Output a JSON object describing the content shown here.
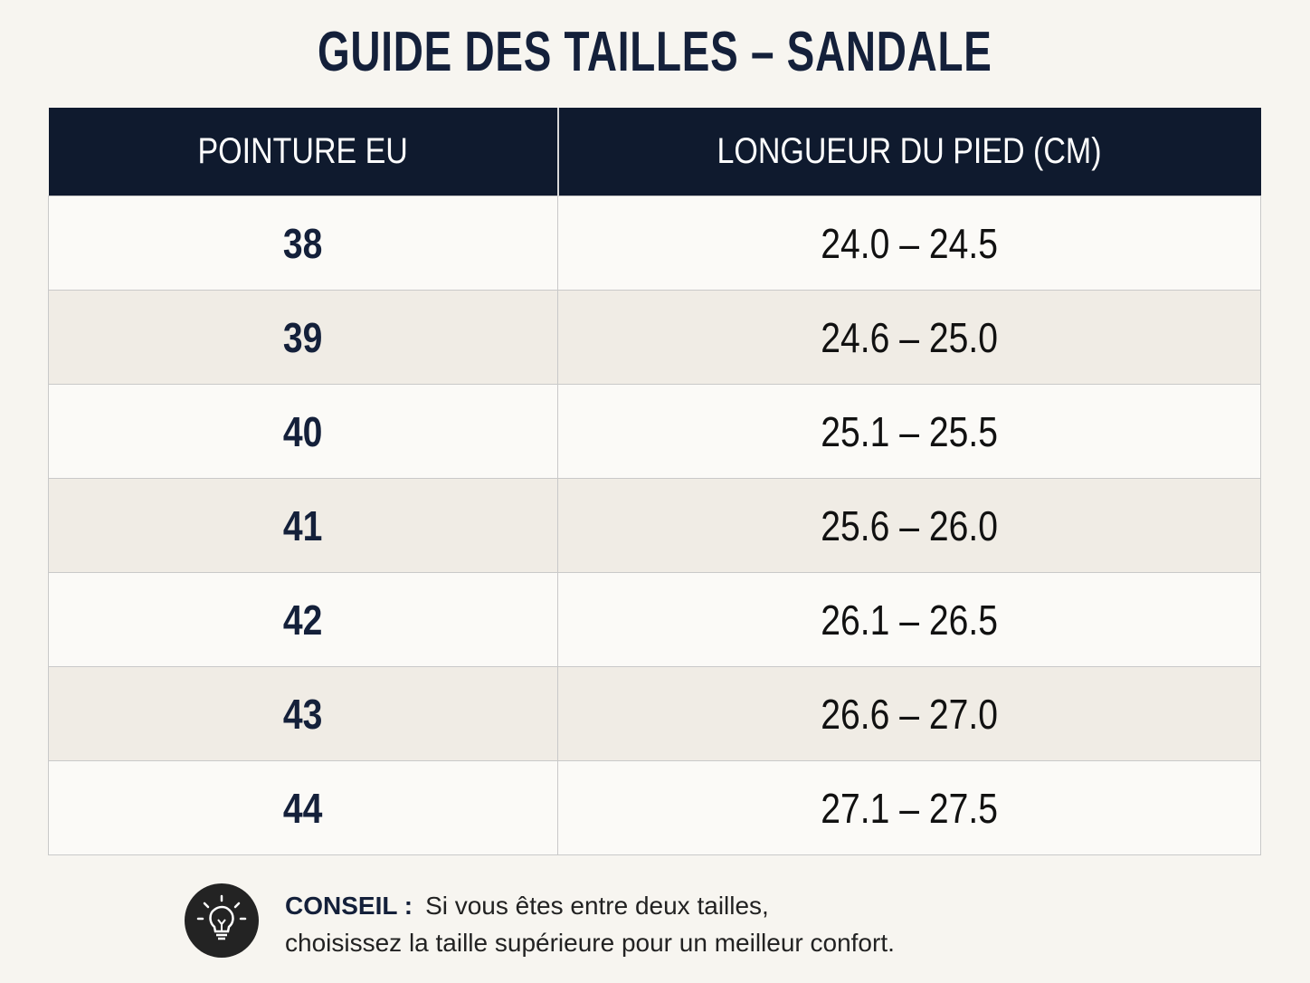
{
  "header": {
    "title": "GUIDE DES TAILLES – SANDALE"
  },
  "table": {
    "headers": [
      "POINTURE EU",
      "LONGUEUR DU PIED (CM)"
    ],
    "rows": [
      [
        "38",
        "24.0 – 24.5"
      ],
      [
        "39",
        "24.6 – 25.0"
      ],
      [
        "40",
        "25.1 – 25.5"
      ],
      [
        "41",
        "25.6 – 26.0"
      ],
      [
        "42",
        "26.1 – 26.5"
      ],
      [
        "43",
        "26.6 – 27.0"
      ],
      [
        "44",
        "27.1 – 27.5"
      ]
    ]
  },
  "tip": {
    "label": "CONSEIL :",
    "lines": [
      "Si vous êtes entre deux tailles,",
      "choisissez la taille supérieure pour un meilleur confort."
    ]
  }
}
